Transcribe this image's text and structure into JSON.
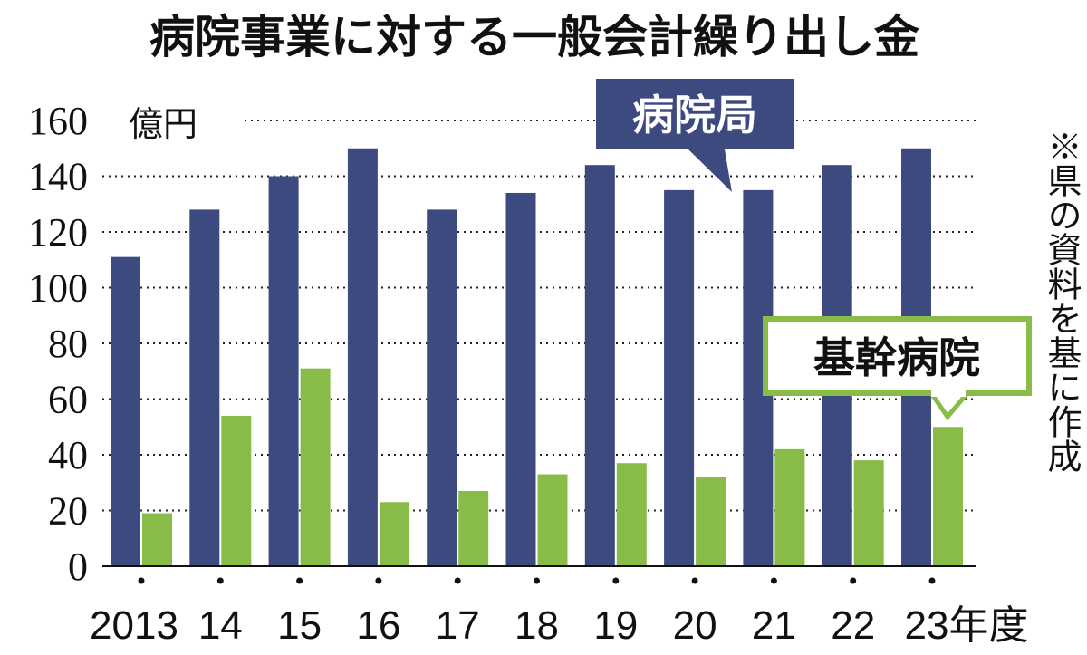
{
  "chart_data": {
    "type": "bar",
    "title": "病院事業に対する一般会計繰り出し金",
    "ylabel": "億円",
    "xunit": "年度",
    "note": "※県の資料を基に作成",
    "categories": [
      "2013",
      "14",
      "15",
      "16",
      "17",
      "18",
      "19",
      "20",
      "21",
      "22",
      "23"
    ],
    "series": [
      {
        "name": "病院局",
        "color": "#3d4a80",
        "values": [
          111,
          128,
          140,
          150,
          128,
          134,
          144,
          135,
          135,
          144,
          150
        ]
      },
      {
        "name": "基幹病院",
        "color": "#88bb48",
        "values": [
          19,
          54,
          71,
          23,
          27,
          33,
          37,
          32,
          42,
          38,
          50
        ]
      }
    ],
    "yticks": [
      0,
      20,
      40,
      60,
      80,
      100,
      120,
      140,
      160
    ],
    "ylim": [
      0,
      160
    ],
    "grid": true
  }
}
